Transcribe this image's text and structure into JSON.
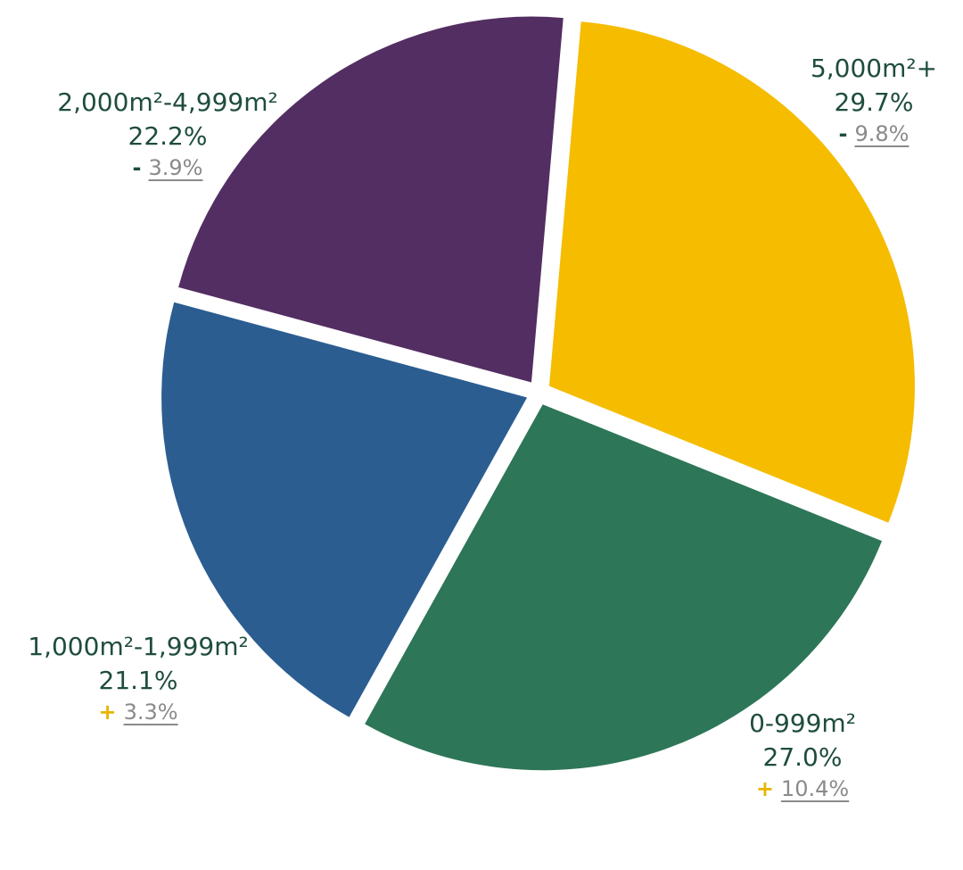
{
  "chart_data": {
    "type": "pie",
    "slices": [
      {
        "category": "5,000m²+",
        "share_label": "29.7%",
        "share": 29.7,
        "change_sign": "-",
        "change_label": "9.8%",
        "color": "#f5bc00"
      },
      {
        "category": "0-999m²",
        "share_label": "27.0%",
        "share": 27.0,
        "change_sign": "+",
        "change_label": "10.4%",
        "color": "#2d7658"
      },
      {
        "category": "1,000m²-1,999m²",
        "share_label": "21.1%",
        "share": 21.1,
        "change_sign": "+",
        "change_label": "3.3%",
        "color": "#2b5d91"
      },
      {
        "category": "2,000m²-4,999m²",
        "share_label": "22.2%",
        "share": 22.2,
        "change_sign": "-",
        "change_label": "3.9%",
        "color": "#532e62"
      }
    ],
    "start_angle_deg": 5,
    "direction": "clockwise",
    "colors": {
      "label_text": "#1f4d3c",
      "plus_sign": "#e8b400",
      "minus_sign": "#1f4d3c",
      "change_text": "#8a8a8a"
    }
  }
}
